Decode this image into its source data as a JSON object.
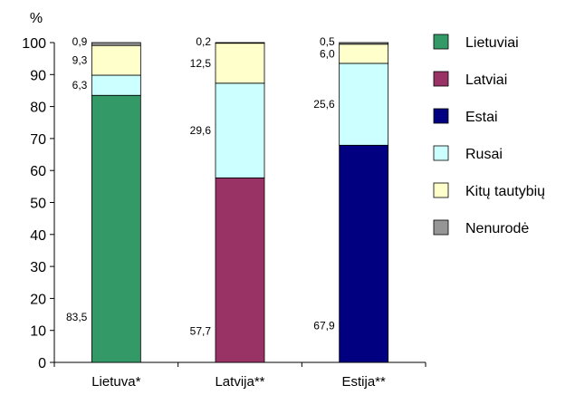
{
  "chart_data": {
    "type": "bar",
    "stacked": true,
    "ylabel": "%",
    "ylim": [
      0,
      100
    ],
    "yticks": [
      0,
      10,
      20,
      30,
      40,
      50,
      60,
      70,
      80,
      90,
      100
    ],
    "categories": [
      "Lietuva*",
      "Latvija**",
      "Estija**"
    ],
    "series": [
      {
        "name": "Lietuviai",
        "color": "#339966",
        "values": [
          83.5,
          0,
          0
        ],
        "labels": [
          "83,5",
          "",
          ""
        ]
      },
      {
        "name": "Latviai",
        "color": "#993366",
        "values": [
          0,
          57.7,
          0
        ],
        "labels": [
          "",
          "57,7",
          ""
        ]
      },
      {
        "name": "Estai",
        "color": "#000080",
        "values": [
          0,
          0,
          67.9
        ],
        "labels": [
          "",
          "",
          "67,9"
        ]
      },
      {
        "name": "Rusai",
        "color": "#ccffff",
        "values": [
          6.3,
          29.6,
          25.6
        ],
        "labels": [
          "6,3",
          "29,6",
          "25,6"
        ]
      },
      {
        "name": "Kitų tautybių",
        "color": "#ffffcc",
        "values": [
          9.3,
          12.5,
          6.0
        ],
        "labels": [
          "9,3",
          "12,5",
          "6,0"
        ]
      },
      {
        "name": "Nenurodė",
        "color": "#969696",
        "values": [
          0.9,
          0.2,
          0.5
        ],
        "labels": [
          "0,9",
          "0,2",
          "0,5"
        ]
      }
    ],
    "legend": "right",
    "grid": false
  }
}
